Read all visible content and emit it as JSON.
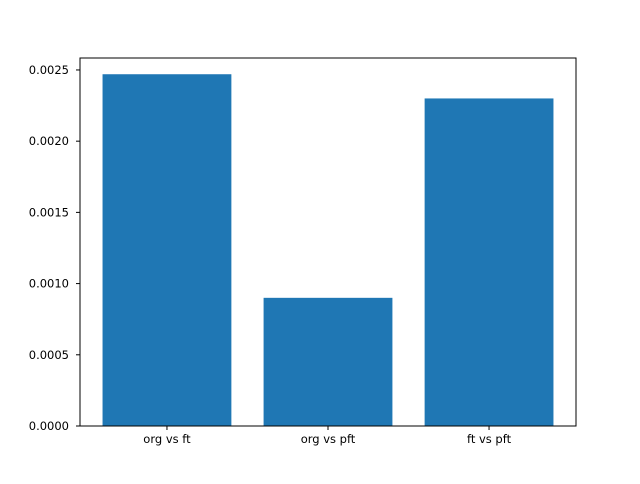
{
  "chart_data": {
    "type": "bar",
    "title": "",
    "xlabel": "",
    "ylabel": "",
    "categories": [
      "org vs ft",
      "org vs pft",
      "ft vs pft"
    ],
    "values": [
      0.00247,
      0.0009,
      0.0023
    ],
    "yticks": [
      0.0,
      0.0005,
      0.001,
      0.0015,
      0.002,
      0.0025
    ],
    "ytick_labels": [
      "0.0000",
      "0.0005",
      "0.0010",
      "0.0015",
      "0.0020",
      "0.0025"
    ],
    "ylim": [
      0,
      0.002584
    ],
    "xlim": [
      -0.54,
      2.54
    ],
    "bar_width_units": 0.8,
    "bar_color": "#1f77b4",
    "axes_edge_color": "#000000",
    "background_color": "#ffffff",
    "grid": false,
    "legend": null
  }
}
